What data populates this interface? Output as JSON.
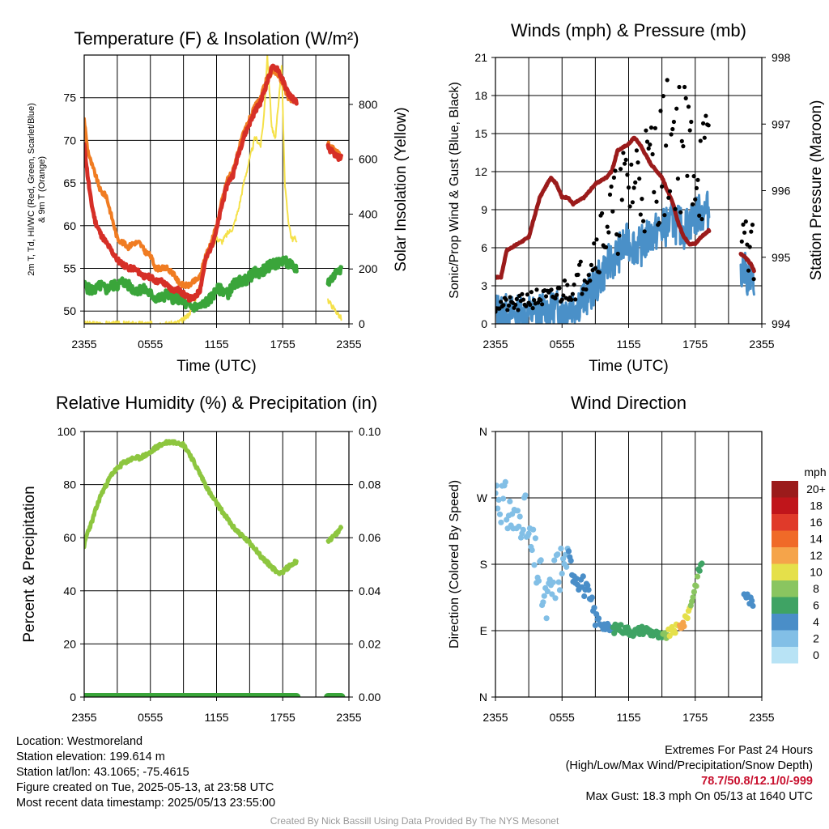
{
  "chart_data": [
    {
      "type": "line",
      "title": "Temperature (F) & Insolation (W/m²)",
      "xlabel": "Time (UTC)",
      "ylabel": "2m T, Td, HI/WC (Red, Green, Scarlet/Blue) & 9m T (Orange)",
      "ylabel2": "Solar Insolation (Yellow)",
      "ylim": [
        48.5,
        80
      ],
      "ylim2": [
        0,
        980
      ],
      "yticks": [
        50,
        55,
        60,
        65,
        70,
        75
      ],
      "yticks2": [
        0,
        200,
        400,
        600,
        800
      ],
      "xticks": [
        "2355",
        "0555",
        "1155",
        "1755",
        "2355"
      ],
      "x_unit": "hours since 2355 UTC",
      "xlim": [
        0,
        24
      ],
      "colors": {
        "temperature": "#d62f27",
        "dewpoint": "#3aa53a",
        "temp_9m": "#f07c22",
        "insolation": "#f5e14a",
        "hiwc": "#c0151b"
      },
      "series": [
        {
          "name": "2m T",
          "x": [
            0,
            0.3,
            0.6,
            1,
            1.5,
            2,
            2.5,
            3,
            3.5,
            4,
            4.5,
            5,
            5.5,
            6,
            6.5,
            7,
            7.5,
            8,
            8.5,
            9,
            9.5,
            10,
            10.5,
            11,
            11.5,
            12,
            12.5,
            13,
            13.5,
            14,
            14.5,
            15,
            15.5,
            16,
            16.5,
            17,
            17.5,
            18,
            18.5,
            19.2,
            22.2,
            22.6,
            23,
            23.3
          ],
          "values": [
            69.5,
            66,
            63,
            60.5,
            59,
            58,
            57,
            56,
            55.5,
            55,
            55,
            54.5,
            54,
            54,
            53.5,
            53.5,
            53,
            52.5,
            52.5,
            52,
            51.5,
            51.5,
            52.5,
            56,
            57.5,
            59.5,
            62.5,
            65,
            66,
            68.5,
            70.5,
            72,
            73.5,
            74.5,
            76.5,
            78.5,
            78.5,
            77,
            75.5,
            74.5,
            69,
            68.5,
            68,
            68
          ]
        },
        {
          "name": "2m Td",
          "x": [
            0,
            0.5,
            1,
            1.5,
            2,
            2.5,
            3,
            3.5,
            4,
            4.5,
            5,
            5.5,
            6,
            6.5,
            7,
            7.5,
            8,
            8.5,
            9,
            9.5,
            10,
            10.5,
            11,
            11.5,
            12,
            12.5,
            13,
            13.5,
            14,
            14.5,
            15,
            15.5,
            16,
            16.5,
            17,
            17.5,
            18,
            18.5,
            19.2,
            22.2,
            22.6,
            23,
            23.3
          ],
          "values": [
            53,
            52.5,
            52.5,
            53,
            52.5,
            53,
            53,
            53.5,
            53,
            52.5,
            52.5,
            52.5,
            52,
            51.5,
            51.5,
            52,
            51.5,
            51.5,
            51,
            50.5,
            50.5,
            50.5,
            51,
            51.5,
            52.5,
            52.5,
            52,
            53,
            53.5,
            53.5,
            54,
            54.5,
            54.5,
            55,
            55.5,
            55.5,
            56,
            55.5,
            55,
            53.5,
            54,
            55,
            55
          ]
        },
        {
          "name": "9m T",
          "x": [
            0,
            0.3,
            0.6,
            1,
            1.5,
            2,
            2.5,
            3,
            3.5,
            4,
            4.5,
            5,
            5.5,
            6,
            6.5,
            7,
            7.5,
            8,
            8.5,
            9,
            9.5,
            10,
            10.5,
            11,
            11.5,
            12,
            12.5,
            13,
            13.5,
            14,
            14.5,
            15,
            15.5,
            16,
            16.5,
            17,
            17.5,
            18,
            18.5,
            19.2,
            22.2,
            22.6,
            23,
            23.3
          ],
          "values": [
            72.5,
            69,
            67.5,
            66,
            64,
            63.5,
            61,
            58.5,
            58,
            57.5,
            58,
            58,
            57,
            56.5,
            55,
            55,
            55,
            54.5,
            53.5,
            53,
            53,
            53.5,
            54,
            56.5,
            58,
            60,
            63,
            65.5,
            66.5,
            69,
            71,
            72.5,
            74,
            75,
            77,
            78,
            78,
            76.5,
            75,
            74.5,
            69.5,
            69,
            68.5,
            68
          ]
        },
        {
          "name": "Insolation",
          "x": [
            0,
            1,
            2,
            3,
            4,
            5,
            6,
            7,
            8,
            8.5,
            9,
            9.5,
            10,
            10.5,
            11,
            11.5,
            12,
            12.5,
            13,
            13.5,
            14,
            14.5,
            15,
            15.5,
            16,
            16.3,
            16.6,
            17,
            17.3,
            17.6,
            17.9,
            18.2,
            18.5,
            18.8,
            19.2,
            22.2,
            23.3
          ],
          "values": [
            0,
            0,
            0,
            0,
            0,
            0,
            0,
            0,
            0,
            5,
            15,
            35,
            80,
            150,
            220,
            280,
            310,
            300,
            330,
            350,
            420,
            520,
            600,
            680,
            650,
            760,
            980,
            720,
            670,
            790,
            950,
            500,
            380,
            310,
            310,
            80,
            20
          ]
        }
      ]
    },
    {
      "type": "scatter",
      "title": "Winds (mph) & Pressure (mb)",
      "xlabel": "Time (UTC)",
      "ylabel": "Sonic/Prop Wind & Gust (Blue, Black)",
      "ylabel2": "Station Pressure (Maroon)",
      "ylim": [
        0,
        21
      ],
      "ylim2": [
        994,
        998
      ],
      "yticks": [
        0,
        3,
        6,
        9,
        12,
        15,
        18,
        21
      ],
      "yticks2": [
        994,
        995,
        996,
        997,
        998
      ],
      "xticks": [
        "2355",
        "0555",
        "1155",
        "1755",
        "2355"
      ],
      "x_unit": "hours since 2355 UTC",
      "xlim": [
        0,
        24
      ],
      "colors": {
        "wind": "#4a90c8",
        "gust": "#000000",
        "pressure": "#9b1b1b"
      },
      "series": [
        {
          "name": "Sonic Wind",
          "x": [
            0,
            1,
            2,
            3,
            4,
            5,
            6,
            7,
            8,
            9,
            10,
            11,
            12,
            13,
            14,
            15,
            16,
            17,
            18,
            19.2,
            22.5,
            23,
            23.3
          ],
          "values": [
            1,
            0.8,
            0.7,
            0.8,
            0.9,
            1,
            1.2,
            1.5,
            2,
            3,
            4.5,
            5.5,
            6.5,
            6,
            7,
            7.5,
            8,
            7.5,
            8.5,
            9,
            4,
            3.5,
            3
          ]
        },
        {
          "name": "Gust",
          "x": [
            0,
            1,
            2,
            3,
            4,
            5,
            6,
            7,
            8,
            9,
            10,
            11,
            12,
            13,
            14,
            15,
            16,
            17,
            18,
            19.2,
            22.5,
            23,
            23.3
          ],
          "values": [
            1.5,
            1.5,
            1.5,
            2,
            2,
            2,
            2.5,
            3,
            4,
            6,
            8,
            9,
            11,
            11.5,
            12,
            13,
            15,
            14,
            13,
            12,
            7,
            6,
            5.5
          ]
        },
        {
          "name": "Station Pressure",
          "x": [
            0,
            0.5,
            1,
            2,
            3,
            4,
            5,
            5.5,
            6,
            6.5,
            7,
            8,
            9,
            10,
            10.5,
            11,
            12,
            12.5,
            13,
            14,
            15,
            15.5,
            16,
            16.5,
            17,
            17.5,
            18,
            18.5,
            19.2,
            22.5,
            23,
            23.3
          ],
          "values": [
            994.7,
            994.7,
            995.1,
            995.2,
            995.3,
            995.9,
            996.2,
            996.1,
            995.9,
            995.9,
            995.8,
            995.9,
            996.1,
            996.2,
            996.3,
            996.6,
            996.7,
            996.8,
            996.7,
            996.4,
            996.2,
            996.0,
            995.8,
            995.5,
            995.3,
            995.2,
            995.2,
            995.3,
            995.4,
            995.0,
            994.9,
            994.8
          ]
        }
      ]
    },
    {
      "type": "line",
      "title": "Relative Humidity (%) & Precipitation (in)",
      "ylabel": "Percent & Precipitation",
      "ylim": [
        0,
        100
      ],
      "ylim2": [
        0,
        0.1
      ],
      "yticks": [
        0,
        20,
        40,
        60,
        80,
        100
      ],
      "yticks2": [
        "0.00",
        "0.02",
        "0.04",
        "0.06",
        "0.08",
        "0.10"
      ],
      "xticks": [
        "2355",
        "0555",
        "1155",
        "1755",
        "2355"
      ],
      "x_unit": "hours since 2355 UTC",
      "xlim": [
        0,
        24
      ],
      "colors": {
        "rh": "#8dc63f",
        "precip": "#3aa53a"
      },
      "series": [
        {
          "name": "RH",
          "x": [
            0,
            0.3,
            0.7,
            1,
            1.5,
            2,
            2.5,
            3,
            3.5,
            4,
            4.5,
            5,
            5.5,
            6,
            6.5,
            7,
            7.5,
            8,
            8.5,
            9,
            9.5,
            10,
            10.5,
            11,
            11.5,
            12,
            12.5,
            13,
            13.5,
            14,
            14.5,
            15,
            15.5,
            16,
            16.5,
            17,
            17.5,
            18,
            18.5,
            19.2,
            22.5,
            23,
            23.3
          ],
          "values": [
            57,
            62,
            66,
            70,
            76,
            80,
            84,
            86,
            88,
            89,
            90,
            90,
            91,
            92,
            94,
            95,
            96,
            96,
            96,
            95,
            92,
            88,
            84,
            80,
            76,
            73,
            70,
            67,
            64,
            62,
            60,
            58,
            56,
            53,
            51,
            49,
            47,
            47,
            49,
            51,
            60,
            62,
            64
          ]
        },
        {
          "name": "Precip",
          "x": [
            0,
            19.2,
            22.5,
            23.3
          ],
          "values": [
            0,
            0,
            0,
            0
          ]
        }
      ]
    },
    {
      "type": "scatter",
      "title": "Wind Direction",
      "ylabel": "Direction (Colored By Speed)",
      "yticks": [
        "N",
        "E",
        "S",
        "W",
        "N"
      ],
      "xticks": [
        "2355",
        "0555",
        "1155",
        "1755",
        "2355"
      ],
      "x_unit": "hours since 2355 UTC",
      "xlim": [
        0,
        24
      ],
      "ylim": [
        0,
        360
      ],
      "legend_title": "mph",
      "legend_labels": [
        "20+",
        "18",
        "16",
        "14",
        "12",
        "10",
        "8",
        "6",
        "4",
        "2",
        "0"
      ],
      "legend_colors": [
        "#9b1b1b",
        "#c0151b",
        "#e03a2a",
        "#f06a28",
        "#f5a44a",
        "#e5e04a",
        "#8ac560",
        "#3fa364",
        "#4a8ec8",
        "#82bfe6",
        "#b8e3f5"
      ],
      "series": [
        {
          "name": "Direction",
          "x": [
            0,
            0.5,
            1,
            1.5,
            2,
            2.5,
            3,
            3.5,
            4,
            4.5,
            5,
            5.5,
            6,
            6.5,
            7,
            7.5,
            8,
            8.5,
            9,
            9.5,
            10,
            10.5,
            11,
            11.5,
            12,
            12.5,
            13,
            13.5,
            14,
            14.5,
            15,
            15.5,
            16,
            16.5,
            17,
            17.5,
            18,
            18.5,
            22.5,
            23,
            23.3
          ],
          "values": [
            280,
            270,
            255,
            245,
            230,
            260,
            210,
            190,
            160,
            120,
            140,
            170,
            180,
            190,
            170,
            160,
            150,
            130,
            110,
            100,
            95,
            90,
            95,
            92,
            90,
            88,
            90,
            92,
            88,
            85,
            80,
            85,
            90,
            95,
            100,
            120,
            150,
            180,
            140,
            130,
            120
          ],
          "speed_mph": [
            1,
            1,
            1,
            1,
            1,
            1,
            1,
            1,
            1,
            1,
            1,
            2,
            2,
            3,
            3,
            4,
            4,
            3,
            3,
            4,
            4,
            5,
            5,
            5,
            5,
            6,
            6,
            6,
            6,
            6,
            7,
            9,
            10,
            11,
            11,
            9,
            8,
            6,
            4,
            4,
            3
          ]
        }
      ]
    }
  ],
  "info": {
    "location": "Location: Westmoreland",
    "elevation": "Station elevation: 199.614 m",
    "latlon": "Station lat/lon: 43.1065; -75.4615",
    "created": "Figure created on Tue, 2025-05-13, at 23:58 UTC",
    "recent": "Most recent data timestamp: 2025/05/13 23:55:00"
  },
  "extremes": {
    "heading": "Extremes For Past 24 Hours",
    "subheading": "(High/Low/Max Wind/Precipitation/Snow Depth)",
    "values": "78.7/50.8/12.1/0/-999",
    "gust": "Max Gust: 18.3 mph On 05/13 at 1640 UTC"
  },
  "credit": "Created By Nick Bassill Using Data Provided By The NYS Mesonet"
}
